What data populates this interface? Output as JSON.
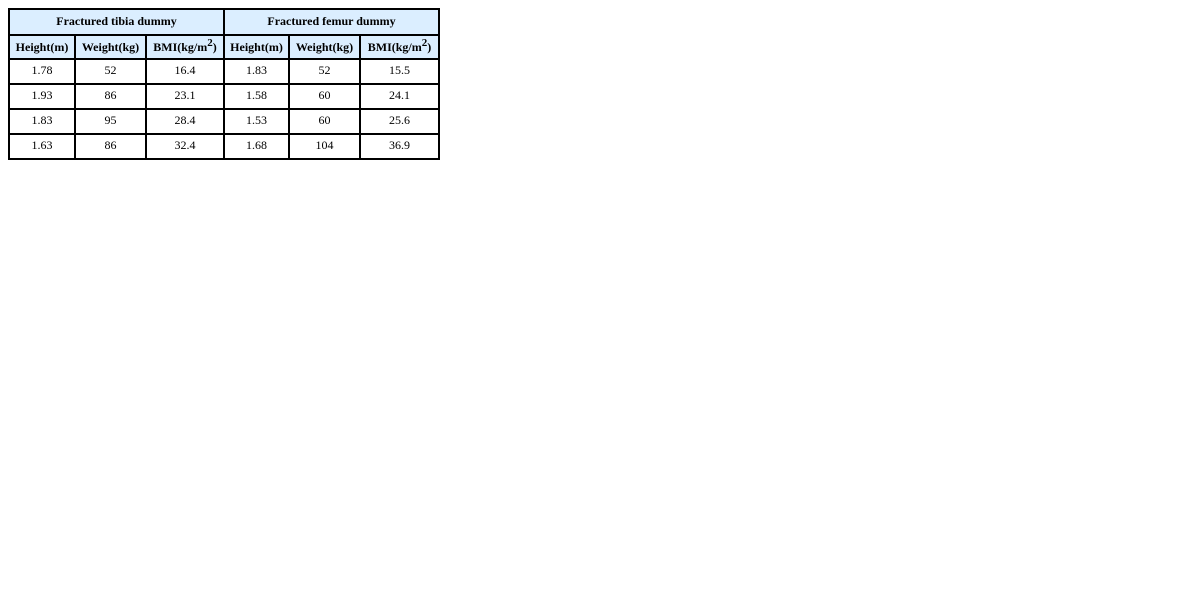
{
  "colors": {
    "header_bg": "#dbeeff",
    "border": "#000000"
  },
  "groups": [
    "Fractured tibia dummy",
    "Fractured femur dummy"
  ],
  "columns": {
    "height": "Height(m)",
    "weight": "Weight(kg)",
    "bmi_base": "BMI(kg/m",
    "bmi_sup": "2",
    "bmi_close": ")"
  },
  "rows": [
    [
      "1.78",
      "52",
      "16.4",
      "1.83",
      "52",
      "15.5"
    ],
    [
      "1.93",
      "86",
      "23.1",
      "1.58",
      "60",
      "24.1"
    ],
    [
      "1.83",
      "95",
      "28.4",
      "1.53",
      "60",
      "25.6"
    ],
    [
      "1.63",
      "86",
      "32.4",
      "1.68",
      "104",
      "36.9"
    ]
  ]
}
